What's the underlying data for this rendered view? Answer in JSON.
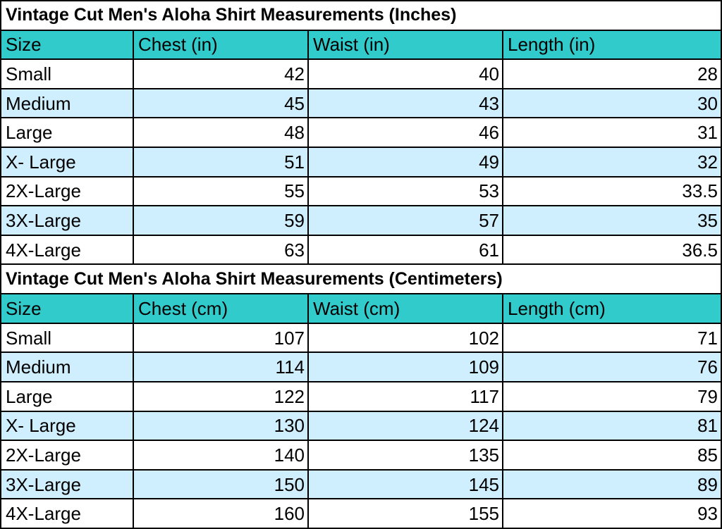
{
  "tables": [
    {
      "title": "Vintage Cut Men's Aloha Shirt Measurements (Inches)",
      "headers": [
        "Size",
        "Chest (in)",
        "Waist (in)",
        "Length (in)"
      ],
      "rows": [
        [
          "Small",
          "42",
          "40",
          "28"
        ],
        [
          "Medium",
          "45",
          "43",
          "30"
        ],
        [
          "Large",
          "48",
          "46",
          "31"
        ],
        [
          "X- Large",
          "51",
          "49",
          "32"
        ],
        [
          "2X-Large",
          "55",
          "53",
          "33.5"
        ],
        [
          "3X-Large",
          "59",
          "57",
          "35"
        ],
        [
          "4X-Large",
          "63",
          "61",
          "36.5"
        ]
      ]
    },
    {
      "title": "Vintage Cut Men's Aloha Shirt Measurements (Centimeters)",
      "headers": [
        "Size",
        "Chest (cm)",
        "Waist (cm)",
        "Length (cm)"
      ],
      "rows": [
        [
          "Small",
          "107",
          "102",
          "71"
        ],
        [
          "Medium",
          "114",
          "109",
          "76"
        ],
        [
          "Large",
          "122",
          "117",
          "79"
        ],
        [
          "X- Large",
          "130",
          "124",
          "81"
        ],
        [
          "2X-Large",
          "140",
          "135",
          "85"
        ],
        [
          "3X-Large",
          "150",
          "145",
          "89"
        ],
        [
          "4X-Large",
          "160",
          "155",
          "93"
        ]
      ]
    }
  ],
  "colors": {
    "header_background": "#31cbcb",
    "alternate_row_background": "#cfeefe",
    "row_background": "#ffffff",
    "grid_lines": "#000000"
  }
}
